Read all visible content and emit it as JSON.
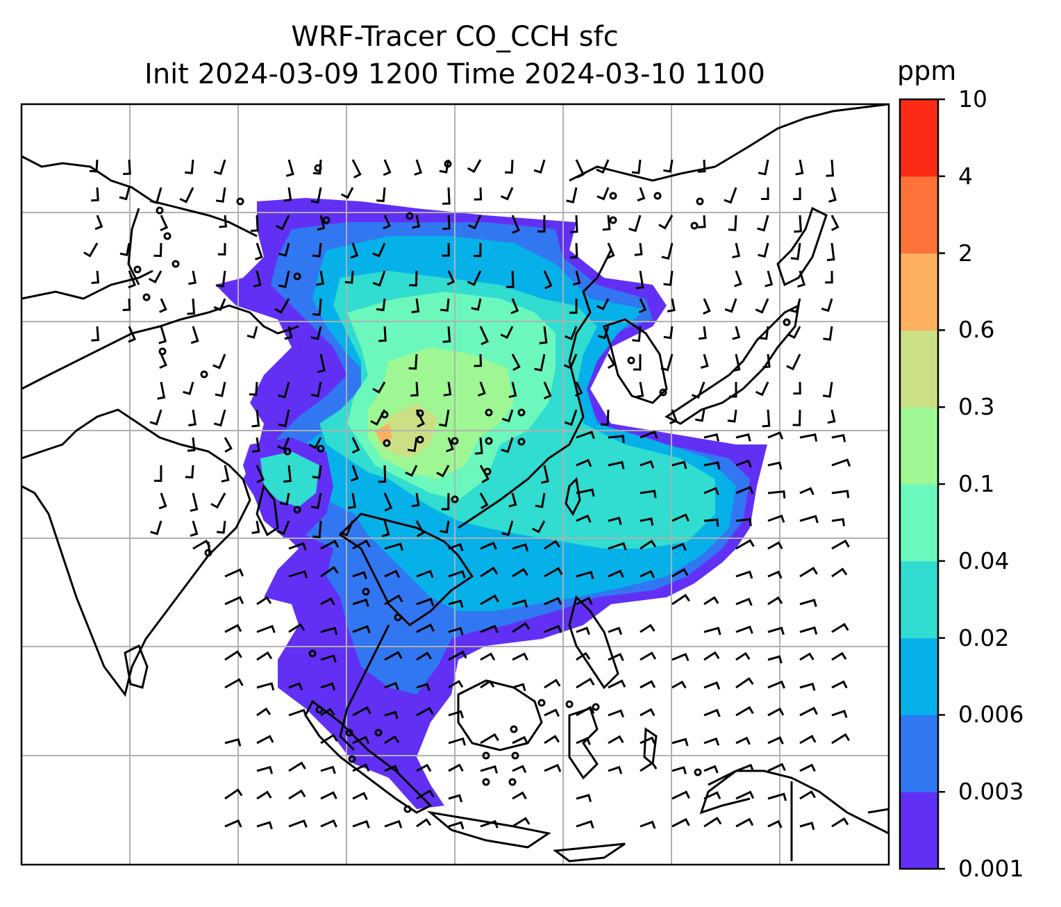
{
  "title": {
    "line1": "WRF-Tracer CO_CCH sfc",
    "line2": "Init 2024-03-09 1200 Time 2024-03-10 1100"
  },
  "colorbar": {
    "unit": "ppm",
    "levels": [
      "0.001",
      "0.003",
      "0.006",
      "0.02",
      "0.04",
      "0.1",
      "0.3",
      "0.6",
      "2",
      "4",
      "10"
    ],
    "colors": [
      "#6230f5",
      "#3277f2",
      "#06b1e9",
      "#31dcd0",
      "#6cf8bd",
      "#9ef793",
      "#cbdf85",
      "#fcb060",
      "#fd7238",
      "#fc2a15"
    ]
  },
  "map": {
    "field": "CO_CCH tracer concentration at surface",
    "overlays": [
      "coastlines",
      "country borders",
      "lat/lon gridlines",
      "wind barbs"
    ]
  }
}
